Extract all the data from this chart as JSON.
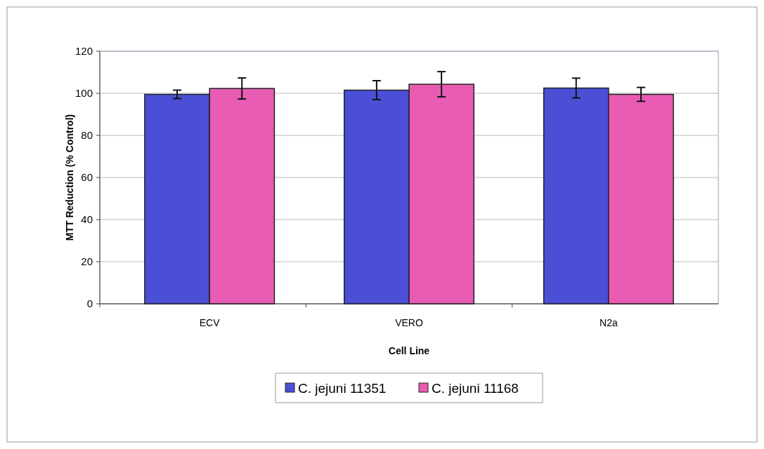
{
  "chart_data": {
    "type": "bar",
    "xlabel": "Cell Line",
    "ylabel": "MTT Reduction (% Control)",
    "categories": [
      "ECV",
      "VERO",
      "N2a"
    ],
    "series": [
      {
        "name": "C. jejuni 11351",
        "color": "#4b4fd6",
        "values": [
          99.5,
          101.5,
          102.5
        ],
        "errors": [
          2,
          4.5,
          4.7
        ]
      },
      {
        "name": "C. jejuni 11168",
        "color": "#e85cb4",
        "values": [
          102.3,
          104.3,
          99.5
        ],
        "errors": [
          5,
          6,
          3.3
        ]
      }
    ],
    "ylim": [
      0,
      120
    ],
    "yticks": [
      0,
      20,
      40,
      60,
      80,
      100,
      120
    ],
    "grid": "y",
    "legend": "bottom"
  }
}
